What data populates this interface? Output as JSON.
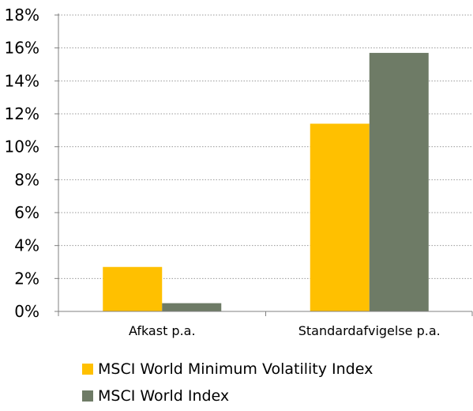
{
  "chart_data": {
    "type": "bar",
    "categories": [
      "Afkast p.a.",
      "Standardafvigelse p.a."
    ],
    "series": [
      {
        "name": "MSCI World Minimum Volatility Index",
        "values": [
          2.7,
          11.4
        ],
        "color": "#FFC000"
      },
      {
        "name": "MSCI World Index",
        "values": [
          0.5,
          15.7
        ],
        "color": "#6E7B66"
      }
    ],
    "y_ticks": [
      "0%",
      "2%",
      "4%",
      "6%",
      "8%",
      "10%",
      "12%",
      "14%",
      "16%",
      "18%"
    ],
    "ylim": [
      0,
      18
    ],
    "y_tick_step": 2,
    "grid": "dotted horizontal",
    "legend_placement": "bottom"
  }
}
